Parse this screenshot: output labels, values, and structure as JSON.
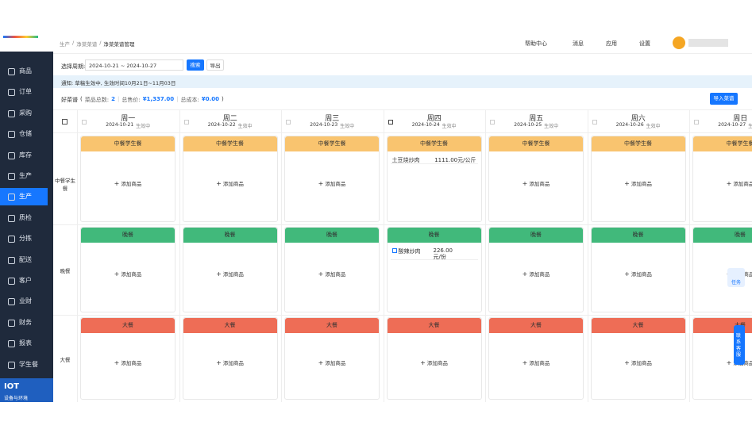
{
  "sidebar": {
    "items": [
      {
        "label": "商品"
      },
      {
        "label": "订单"
      },
      {
        "label": "采购"
      },
      {
        "label": "仓储"
      },
      {
        "label": "库存"
      },
      {
        "label": "生产"
      },
      {
        "label": "生产",
        "active": true
      },
      {
        "label": "质检"
      },
      {
        "label": "分拣"
      },
      {
        "label": "配送"
      },
      {
        "label": "客户"
      },
      {
        "label": "业财"
      },
      {
        "label": "财务"
      },
      {
        "label": "报表"
      },
      {
        "label": "学生餐"
      }
    ]
  },
  "iot": {
    "title": "IOT",
    "subtitle": "设备与环境"
  },
  "breadcrumb": [
    "生产",
    "净菜菜谱",
    "净菜菜谱管理"
  ],
  "toolbar": [
    "帮助中心",
    "消息",
    "应用",
    "设置"
  ],
  "filter": {
    "label": "选择周期:",
    "range": "2024-10-21 ~ 2024-10-27",
    "search": "搜索",
    "export": "导出"
  },
  "notice": "通知: 草稿生效中, 生效时间10月21日~11月03日",
  "summary": {
    "name": "好菜谱",
    "count_label": "菜品总数:",
    "count": "2",
    "price_label": "总售价:",
    "price": "¥1,337.00",
    "cost_label": "总成本:",
    "cost": "¥0.00",
    "import": "导入菜谱"
  },
  "days": [
    {
      "name": "周一",
      "date": "2024-10-21",
      "status": "生效中"
    },
    {
      "name": "周二",
      "date": "2024-10-22",
      "status": "生效中"
    },
    {
      "name": "周三",
      "date": "2024-10-23",
      "status": "生效中"
    },
    {
      "name": "周四",
      "date": "2024-10-24",
      "status": "生效中"
    },
    {
      "name": "周五",
      "date": "2024-10-25",
      "status": "生效中"
    },
    {
      "name": "周六",
      "date": "2024-10-26",
      "status": "生效中"
    },
    {
      "name": "周日",
      "date": "2024-10-27",
      "status": "生效中"
    }
  ],
  "meals": [
    {
      "label": "中餐学生餐",
      "tag": "中餐学生餐",
      "color": "#f9c46f",
      "cells": [
        {
          "add": "添加商品"
        },
        {
          "add": "添加商品"
        },
        {
          "add": "添加商品"
        },
        {
          "name": "土豆烧炒肉",
          "price": "1111.00元/公斤"
        },
        {
          "add": "添加商品"
        },
        {
          "add": "添加商品"
        },
        {
          "add": "添加商品"
        }
      ]
    },
    {
      "label": "晚餐",
      "tag": "晚餐",
      "color": "#41b97b",
      "cells": [
        {
          "add": "添加商品"
        },
        {
          "add": "添加商品"
        },
        {
          "add": "添加商品"
        },
        {
          "name": "酸辣炒肉",
          "price": "226.00元/份"
        },
        {
          "add": "添加商品"
        },
        {
          "add": "添加商品"
        },
        {
          "add": "添加商品"
        }
      ]
    },
    {
      "label": "大餐",
      "tag": "大餐",
      "color": "#ee6d56",
      "cells": [
        {
          "add": "添加商品"
        },
        {
          "add": "添加商品"
        },
        {
          "add": "添加商品"
        },
        {
          "add": "添加商品"
        },
        {
          "add": "添加商品"
        },
        {
          "add": "添加商品"
        },
        {
          "add": "添加商品"
        }
      ]
    }
  ],
  "float": {
    "task": "任务",
    "service": "联系客服"
  }
}
